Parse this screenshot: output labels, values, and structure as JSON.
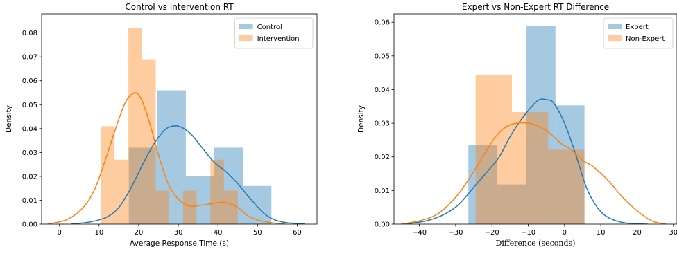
{
  "chart_data": [
    {
      "type": "histogram",
      "title": "Control vs Intervention RT",
      "xlabel": "Average Response Time (s)",
      "ylabel": "Density",
      "xlim": [
        -4.5,
        65
      ],
      "ylim": [
        0,
        0.088
      ],
      "xticks": [
        0,
        10,
        20,
        30,
        40,
        50,
        60
      ],
      "yticks": [
        0.0,
        0.01,
        0.02,
        0.03,
        0.04,
        0.05,
        0.06,
        0.07,
        0.08
      ],
      "ytick_decimals": 2,
      "legend_position": "top-right",
      "series": [
        {
          "name": "Control",
          "color": "#1f77b4",
          "bins": [
            {
              "x0": 17.5,
              "x1": 24.7,
              "density": 0.032
            },
            {
              "x0": 24.7,
              "x1": 31.9,
              "density": 0.056
            },
            {
              "x0": 31.9,
              "x1": 39.1,
              "density": 0.02
            },
            {
              "x0": 39.1,
              "x1": 46.3,
              "density": 0.032
            },
            {
              "x0": 46.3,
              "x1": 53.5,
              "density": 0.016
            }
          ],
          "kde": {
            "x": [
              3,
              8,
              12,
              15,
              18,
              21,
              24,
              27,
              30,
              33,
              36,
              39,
              42,
              45,
              48,
              52,
              56,
              62
            ],
            "y": [
              0.0,
              0.001,
              0.003,
              0.007,
              0.015,
              0.025,
              0.034,
              0.04,
              0.041,
              0.038,
              0.032,
              0.026,
              0.022,
              0.017,
              0.011,
              0.004,
              0.001,
              0.0
            ]
          }
        },
        {
          "name": "Intervention",
          "color": "#ff7f0e",
          "bins": [
            {
              "x0": 10.5,
              "x1": 13.9,
              "density": 0.041
            },
            {
              "x0": 13.9,
              "x1": 17.4,
              "density": 0.027
            },
            {
              "x0": 17.4,
              "x1": 20.8,
              "density": 0.082
            },
            {
              "x0": 20.8,
              "x1": 24.3,
              "density": 0.069
            },
            {
              "x0": 24.3,
              "x1": 27.7,
              "density": 0.014
            },
            {
              "x0": 27.7,
              "x1": 31.2,
              "density": 0.0
            },
            {
              "x0": 31.2,
              "x1": 34.6,
              "density": 0.014
            },
            {
              "x0": 34.6,
              "x1": 38.1,
              "density": 0.0
            },
            {
              "x0": 38.1,
              "x1": 41.5,
              "density": 0.027
            },
            {
              "x0": 41.5,
              "x1": 45.0,
              "density": 0.014
            }
          ],
          "kde": {
            "x": [
              -3,
              2,
              6,
              9,
              12,
              15,
              17,
              19,
              20,
              21,
              23,
              25,
              28,
              32,
              36,
              40,
              42,
              45,
              48,
              52,
              57
            ],
            "y": [
              0.0,
              0.002,
              0.007,
              0.015,
              0.029,
              0.044,
              0.052,
              0.055,
              0.054,
              0.051,
              0.041,
              0.029,
              0.015,
              0.008,
              0.008,
              0.009,
              0.009,
              0.007,
              0.003,
              0.001,
              0.0
            ]
          }
        }
      ]
    },
    {
      "type": "histogram",
      "title": "Expert vs Non-Expert RT Difference",
      "xlabel": "Difference (seconds)",
      "ylabel": "Density",
      "xlim": [
        -47,
        31
      ],
      "ylim": [
        0,
        0.0625
      ],
      "xticks": [
        -40,
        -30,
        -20,
        -10,
        0,
        10,
        20,
        30
      ],
      "yticks": [
        0.0,
        0.01,
        0.02,
        0.03,
        0.04,
        0.05,
        0.06
      ],
      "ytick_decimals": 2,
      "legend_position": "top-right",
      "series": [
        {
          "name": "Expert",
          "color": "#1f77b4",
          "bins": [
            {
              "x0": -26.5,
              "x1": -18.5,
              "density": 0.0235
            },
            {
              "x0": -18.5,
              "x1": -10.5,
              "density": 0.0118
            },
            {
              "x0": -10.5,
              "x1": -2.5,
              "density": 0.059
            },
            {
              "x0": -2.5,
              "x1": 5.5,
              "density": 0.0353
            }
          ],
          "kde": {
            "x": [
              -44,
              -38,
              -33,
              -29,
              -25,
              -21,
              -18,
              -15,
              -12,
              -9,
              -7,
              -5,
              -3,
              0,
              3,
              6,
              9,
              12,
              16,
              20,
              23
            ],
            "y": [
              0.0,
              0.001,
              0.003,
              0.006,
              0.011,
              0.016,
              0.02,
              0.026,
              0.031,
              0.035,
              0.037,
              0.037,
              0.036,
              0.03,
              0.021,
              0.011,
              0.005,
              0.002,
              0.0005,
              0.0001,
              0.0
            ]
          }
        },
        {
          "name": "Non-Expert",
          "color": "#ff7f0e",
          "bins": [
            {
              "x0": -24.5,
              "x1": -14.5,
              "density": 0.0442
            },
            {
              "x0": -14.5,
              "x1": -4.5,
              "density": 0.0333
            },
            {
              "x0": -4.5,
              "x1": 5.5,
              "density": 0.0221
            }
          ],
          "kde": {
            "x": [
              -45,
              -40,
              -35,
              -30,
              -26,
              -22,
              -19,
              -16,
              -13,
              -10,
              -7,
              -4,
              -1,
              2,
              5,
              8,
              12,
              16,
              20,
              24,
              28
            ],
            "y": [
              0.0,
              0.001,
              0.003,
              0.008,
              0.014,
              0.021,
              0.026,
              0.029,
              0.03,
              0.03,
              0.029,
              0.027,
              0.024,
              0.022,
              0.019,
              0.017,
              0.013,
              0.008,
              0.004,
              0.001,
              0.0
            ]
          }
        }
      ]
    }
  ]
}
